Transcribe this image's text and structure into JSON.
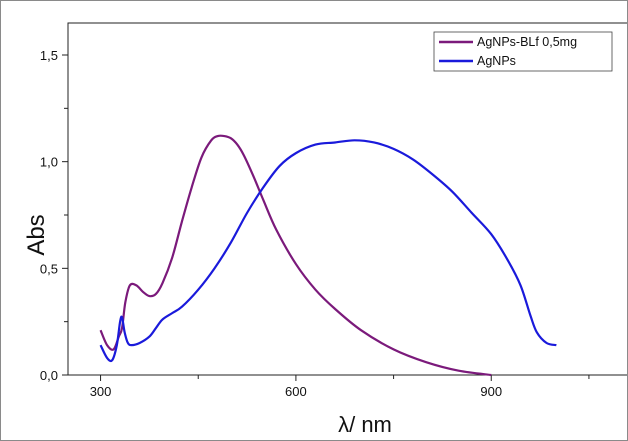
{
  "chart_data": {
    "type": "line",
    "xlabel": "λ/ nm",
    "ylabel": "Abs",
    "xlim": [
      250,
      1110
    ],
    "ylim": [
      0,
      1.65
    ],
    "x_ticks": [
      300,
      600,
      900
    ],
    "x_tick_labels": [
      "300",
      "600",
      "900"
    ],
    "y_ticks": [
      0,
      0.5,
      1.0,
      1.5
    ],
    "y_tick_labels": [
      "0,0",
      "0,5",
      "1,0",
      "1,5"
    ],
    "grid": false,
    "legend_position": "top-right",
    "series": [
      {
        "name": "AgNPs-BLf 0,5mg",
        "color": "#7b1a7b",
        "x": [
          300,
          310,
          320,
          328,
          333,
          338,
          345,
          355,
          365,
          375,
          385,
          395,
          410,
          425,
          440,
          455,
          470,
          480,
          490,
          500,
          510,
          520,
          535,
          550,
          570,
          600,
          630,
          660,
          700,
          750,
          800,
          850,
          900
        ],
        "y": [
          0.21,
          0.14,
          0.12,
          0.18,
          0.22,
          0.34,
          0.42,
          0.42,
          0.39,
          0.37,
          0.38,
          0.43,
          0.55,
          0.72,
          0.88,
          1.02,
          1.1,
          1.12,
          1.12,
          1.11,
          1.08,
          1.03,
          0.93,
          0.82,
          0.68,
          0.52,
          0.4,
          0.31,
          0.21,
          0.12,
          0.06,
          0.02,
          0.0
        ]
      },
      {
        "name": "AgNPs",
        "color": "#1a1adb",
        "x": [
          300,
          310,
          318,
          325,
          330,
          333,
          337,
          342,
          348,
          360,
          375,
          385,
          395,
          410,
          425,
          450,
          475,
          500,
          525,
          550,
          575,
          600,
          630,
          660,
          690,
          720,
          750,
          780,
          810,
          840,
          870,
          900,
          925,
          945,
          960,
          970,
          985,
          1000
        ],
        "y": [
          0.14,
          0.08,
          0.07,
          0.14,
          0.25,
          0.27,
          0.2,
          0.15,
          0.14,
          0.15,
          0.18,
          0.22,
          0.26,
          0.29,
          0.32,
          0.4,
          0.5,
          0.62,
          0.76,
          0.88,
          0.98,
          1.04,
          1.08,
          1.09,
          1.1,
          1.09,
          1.06,
          1.01,
          0.94,
          0.86,
          0.76,
          0.66,
          0.54,
          0.42,
          0.28,
          0.2,
          0.15,
          0.14
        ]
      }
    ]
  }
}
